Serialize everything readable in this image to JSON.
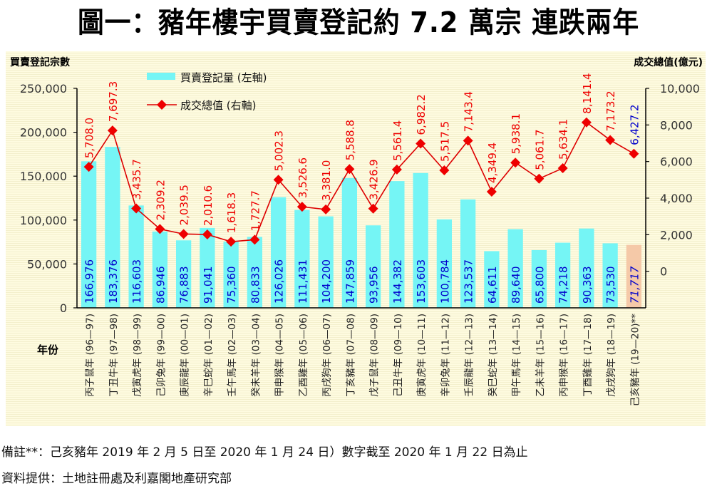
{
  "title": "圖一：豬年樓宇買賣登記約 7.2 萬宗  連跌兩年",
  "notes": {
    "remark": "備註**：己亥豬年 2019 年 2 月 5 日至 2020 年 1 月 24 日）數字截至 2020 年 1 月 22 日為止",
    "source": "資料提供：土地註冊處及利嘉閣地產研究部"
  },
  "colors": {
    "bar": "#75f5f5",
    "bar_partial": "#f5c9a8",
    "line": "#dd0000",
    "marker": "#ee0000",
    "bar_label": "#0000cc",
    "line_label": "#ee0000",
    "line_label_partial": "#0000cc"
  },
  "chart_data": {
    "type": "bar+line",
    "title": "圖一：豬年樓宇買賣登記約 7.2 萬宗  連跌兩年",
    "xlabel": "年份",
    "ylabel_left": "買賣登記宗數",
    "ylabel_right": "成交總值(億元)",
    "ylim_left": [
      0,
      250000
    ],
    "ylim_right": [
      -2000,
      10000
    ],
    "yticks_left": [
      "0",
      "50,000",
      "100,000",
      "150,000",
      "200,000",
      "250,000"
    ],
    "yticks_left_values": [
      0,
      50000,
      100000,
      150000,
      200000,
      250000
    ],
    "yticks_right": [
      "0",
      "2,000",
      "4,000",
      "6,000",
      "8,000",
      "10,000"
    ],
    "yticks_right_values": [
      0,
      2000,
      4000,
      6000,
      8000,
      10000
    ],
    "legend_position": "top-left",
    "categories": [
      "丙子鼠年 (96—97)",
      "丁丑牛年 (97—98)",
      "戊寅虎年 (98—99)",
      "己卯兔年 (99—00)",
      "庚辰龍年 (00—01)",
      "辛巳蛇年 (01—02)",
      "壬午馬年 (02—03)",
      "癸未羊年 (03—04)",
      "甲申猴年 (04—05)",
      "乙酉雞年 (05—06)",
      "丙戌狗年 (06—07)",
      "丁亥豬年 (07—08)",
      "戊子鼠年 (08—09)",
      "己丑牛年 (09—10)",
      "庚寅虎年 (10—11)",
      "辛卯兔年 (11—12)",
      "壬辰龍年 (12—13)",
      "癸巳蛇年 (13—14)",
      "甲午馬年 (14—15)",
      "乙未羊年 (15—16)",
      "丙申猴年 (16—17)",
      "丁酉雞年 (17—18)",
      "戊戌狗年 (18—19)",
      "己亥豬年 (19—20)**"
    ],
    "series": [
      {
        "name": "買賣登記量 (左軸)",
        "type": "bar",
        "axis": "left",
        "values": [
          166976,
          183376,
          116603,
          86946,
          76883,
          91041,
          75360,
          80833,
          126026,
          111431,
          104200,
          147859,
          93956,
          144382,
          153603,
          100784,
          123537,
          64611,
          89640,
          65800,
          74218,
          90363,
          73530,
          71717
        ],
        "labels": [
          "166,976",
          "183,376",
          "116,603",
          "86,946",
          "76,883",
          "91,041",
          "75,360",
          "80,833",
          "126,026",
          "111,431",
          "104,200",
          "147,859",
          "93,956",
          "144,382",
          "153,603",
          "100,784",
          "123,537",
          "64,611",
          "89,640",
          "65,800",
          "74,218",
          "90,363",
          "73,530",
          "71,717"
        ]
      },
      {
        "name": "成交總值 (右軸)",
        "type": "line",
        "axis": "right",
        "values": [
          5708.0,
          7697.3,
          3435.7,
          2309.2,
          2039.5,
          2010.6,
          1618.3,
          1727.7,
          5002.3,
          3526.6,
          3381.0,
          5588.8,
          3426.9,
          5561.4,
          6982.2,
          5517.5,
          7143.4,
          4349.4,
          5938.1,
          5061.7,
          5634.1,
          8141.4,
          7173.2,
          6427.2
        ],
        "labels": [
          "5,708.0",
          "7,697.3",
          "3,435.7",
          "2,309.2",
          "2,039.5",
          "2,010.6",
          "1,618.3",
          "1,727.7",
          "5,002.3",
          "3,526.6",
          "3,381.0",
          "5,588.8",
          "3,426.9",
          "5,561.4",
          "6,982.2",
          "5,517.5",
          "7,143.4",
          "4,349.4",
          "5,938.1",
          "5,061.7",
          "5,634.1",
          "8,141.4",
          "7,173.2",
          "6,427.2"
        ]
      }
    ],
    "partial_index": 23
  }
}
